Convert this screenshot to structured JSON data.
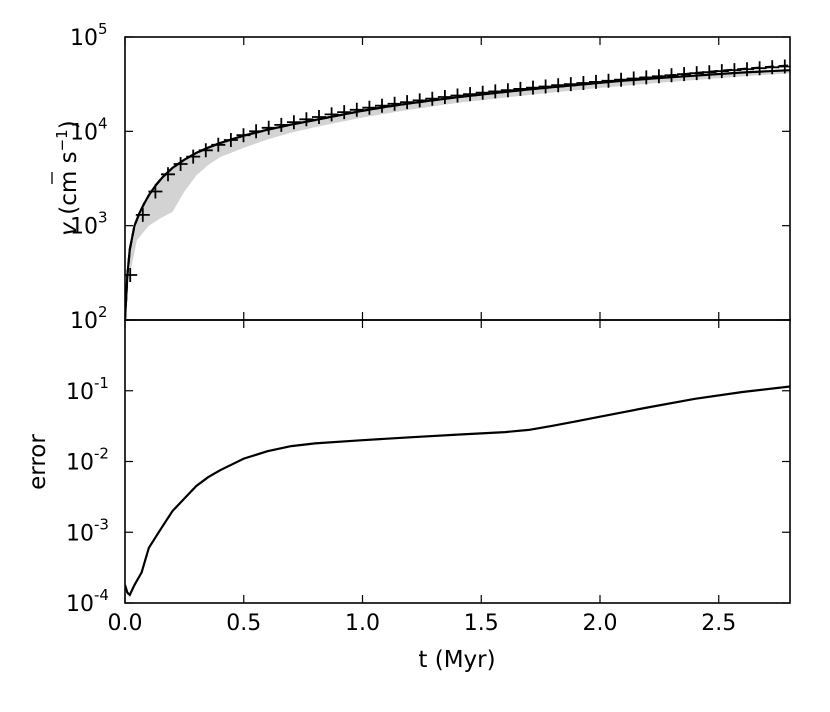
{
  "chart_data": [
    {
      "type": "line",
      "panel": "top",
      "xlabel": "",
      "ylabel": {
        "var": "v",
        "unit_open": " (cm s",
        "unit_exp": "−1",
        "unit_close": ")"
      },
      "ylim": [
        100,
        100000
      ],
      "yscale": "log",
      "xlim": [
        0,
        2.8
      ],
      "yticks": [
        {
          "base": "10",
          "exp": "2",
          "value": 100
        },
        {
          "base": "10",
          "exp": "3",
          "value": 1000
        },
        {
          "base": "10",
          "exp": "4",
          "value": 10000
        },
        {
          "base": "10",
          "exp": "5",
          "value": 100000
        }
      ],
      "series": [
        {
          "style": "solid",
          "x": [
            0.0,
            0.01,
            0.02,
            0.04,
            0.06,
            0.08,
            0.1,
            0.13,
            0.16,
            0.2,
            0.25,
            0.3,
            0.35,
            0.4,
            0.5,
            0.6,
            0.7,
            0.8,
            0.9,
            1.0,
            1.1,
            1.2,
            1.3,
            1.4,
            1.5,
            1.6,
            1.7,
            1.8,
            1.9,
            2.0,
            2.1,
            2.2,
            2.3,
            2.4,
            2.5,
            2.6,
            2.7,
            2.8
          ],
          "y": [
            100,
            300,
            560,
            1000,
            1350,
            1700,
            2100,
            2700,
            3300,
            4100,
            5000,
            5900,
            6700,
            7500,
            9000,
            10400,
            11800,
            13200,
            14800,
            16500,
            18200,
            19800,
            21400,
            23000,
            24600,
            26200,
            27800,
            29400,
            31000,
            32700,
            34400,
            36000,
            37500,
            39000,
            40500,
            42000,
            43300,
            44500
          ]
        },
        {
          "style": "dashed",
          "x": [
            0.0,
            0.01,
            0.02,
            0.04,
            0.06,
            0.08,
            0.1,
            0.13,
            0.16,
            0.2,
            0.25,
            0.3,
            0.35,
            0.4,
            0.5,
            0.6,
            0.7,
            0.8,
            0.9,
            1.0,
            1.1,
            1.2,
            1.3,
            1.4,
            1.5,
            1.6,
            1.7,
            1.8,
            1.9,
            2.0,
            2.1,
            2.2,
            2.3,
            2.4,
            2.5,
            2.6,
            2.7,
            2.8
          ],
          "y": [
            100,
            300,
            560,
            1000,
            1350,
            1700,
            2100,
            2700,
            3300,
            4100,
            5000,
            5900,
            6700,
            7500,
            9000,
            10400,
            11800,
            13200,
            14800,
            16500,
            18200,
            19800,
            21400,
            23000,
            24600,
            26200,
            27800,
            29400,
            31000,
            32800,
            34800,
            37000,
            39200,
            41400,
            43600,
            45800,
            48000,
            50000
          ]
        },
        {
          "style": "plus-markers",
          "x": [
            0.022,
            0.075,
            0.128,
            0.181,
            0.234,
            0.287,
            0.34,
            0.393,
            0.446,
            0.499,
            0.552,
            0.605,
            0.658,
            0.711,
            0.764,
            0.817,
            0.87,
            0.923,
            0.976,
            1.029,
            1.082,
            1.135,
            1.188,
            1.241,
            1.294,
            1.347,
            1.4,
            1.453,
            1.506,
            1.559,
            1.612,
            1.665,
            1.718,
            1.771,
            1.824,
            1.877,
            1.93,
            1.983,
            2.036,
            2.089,
            2.142,
            2.195,
            2.248,
            2.301,
            2.354,
            2.407,
            2.46,
            2.513,
            2.566,
            2.619,
            2.672,
            2.725,
            2.778
          ],
          "y": [
            300,
            1300,
            2300,
            3500,
            4500,
            5400,
            6300,
            7200,
            8100,
            9100,
            10000,
            10900,
            11700,
            12500,
            13400,
            14200,
            15100,
            16000,
            16900,
            17800,
            18700,
            19600,
            20400,
            21300,
            22200,
            23100,
            24000,
            24800,
            25700,
            26500,
            27300,
            28200,
            29100,
            29900,
            30800,
            31700,
            32500,
            33400,
            34300,
            35300,
            36300,
            37300,
            38300,
            39300,
            40400,
            41400,
            42400,
            43500,
            44600,
            45600,
            46700,
            47700,
            48700
          ]
        },
        {
          "style": "band",
          "x": [
            0.02,
            0.05,
            0.1,
            0.15,
            0.2,
            0.25,
            0.3,
            0.35,
            0.4,
            0.5,
            0.6,
            0.7,
            0.8,
            1.0,
            1.2,
            1.4,
            1.6,
            1.8,
            2.0,
            2.2,
            2.4,
            2.6,
            2.8
          ],
          "upper": [
            500,
            1100,
            2100,
            3000,
            4100,
            5000,
            5900,
            6700,
            7500,
            9000,
            10400,
            11800,
            13200,
            16500,
            19800,
            23000,
            26200,
            29400,
            32700,
            36000,
            39000,
            42000,
            44500
          ],
          "lower": [
            300,
            700,
            1000,
            1200,
            1400,
            2300,
            3400,
            4400,
            5300,
            6700,
            8200,
            9700,
            11100,
            14000,
            17000,
            20000,
            22800,
            25800,
            28900,
            32000,
            35000,
            38200,
            41300
          ]
        }
      ]
    },
    {
      "type": "line",
      "panel": "bottom",
      "xlabel": "t (Myr)",
      "ylabel": "error",
      "yscale": "log",
      "ylim": [
        0.0001,
        1
      ],
      "xlim": [
        0,
        2.8
      ],
      "xticks": [
        "0.0",
        "0.5",
        "1.0",
        "1.5",
        "2.0",
        "2.5"
      ],
      "yticks": [
        {
          "base": "10",
          "exp": "-4",
          "value": 0.0001
        },
        {
          "base": "10",
          "exp": "-3",
          "value": 0.001
        },
        {
          "base": "10",
          "exp": "-2",
          "value": 0.01
        },
        {
          "base": "10",
          "exp": "-1",
          "value": 0.1
        }
      ],
      "series": [
        {
          "style": "solid",
          "x": [
            0.0,
            0.01,
            0.02,
            0.04,
            0.07,
            0.1,
            0.15,
            0.2,
            0.25,
            0.3,
            0.35,
            0.4,
            0.5,
            0.6,
            0.7,
            0.8,
            1.0,
            1.2,
            1.4,
            1.6,
            1.7,
            1.8,
            1.9,
            2.0,
            2.2,
            2.4,
            2.6,
            2.8
          ],
          "y": [
            0.00018,
            0.00014,
            0.00013,
            0.00018,
            0.00027,
            0.0006,
            0.0011,
            0.002,
            0.003,
            0.0045,
            0.006,
            0.0075,
            0.011,
            0.014,
            0.0165,
            0.018,
            0.02,
            0.022,
            0.024,
            0.026,
            0.028,
            0.032,
            0.037,
            0.043,
            0.058,
            0.077,
            0.096,
            0.115
          ]
        }
      ]
    }
  ]
}
